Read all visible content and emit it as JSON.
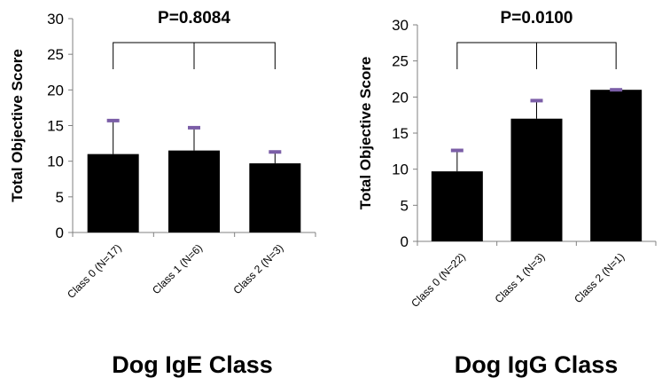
{
  "colors": {
    "bar": "#000000",
    "error_cap": "#7b5ea7",
    "axis": "#808080",
    "bracket": "#000000"
  },
  "chart_data": [
    {
      "type": "bar",
      "ylabel": "Total Objective Score",
      "xlabel": "Dog IgE Class",
      "annotation": "P=0.8084",
      "ylim": [
        0,
        30
      ],
      "yticks": [
        0,
        5,
        10,
        15,
        20,
        25,
        30
      ],
      "categories": [
        "Class 0 (N=17)",
        "Class 1 (N=6)",
        "Class 2 (N=3)"
      ],
      "values": [
        11,
        11.5,
        9.7
      ],
      "error_upper": [
        15.7,
        14.7,
        11.3
      ]
    },
    {
      "type": "bar",
      "ylabel": "Total Objective Score",
      "xlabel": "Dog IgG Class",
      "annotation": "P=0.0100",
      "ylim": [
        0,
        30
      ],
      "yticks": [
        0,
        5,
        10,
        15,
        20,
        25,
        30
      ],
      "categories": [
        "Class 0 (N=22)",
        "Class 1 (N=3)",
        "Class 2 (N=1)"
      ],
      "values": [
        9.7,
        17,
        21
      ],
      "error_upper": [
        12.6,
        19.5,
        21
      ]
    }
  ]
}
